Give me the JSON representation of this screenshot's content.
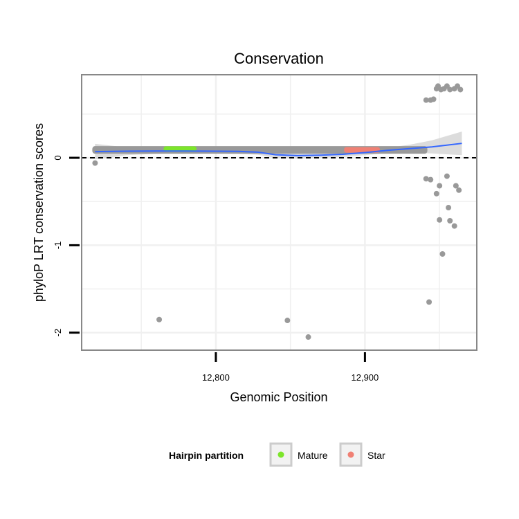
{
  "chart_data": {
    "type": "scatter",
    "title": "Conservation",
    "xlabel": "Genomic Position",
    "ylabel": "phyloP LRT conservation scores",
    "xlim": [
      12710,
      12975
    ],
    "ylim": [
      -2.2,
      0.95
    ],
    "x_ticks": [
      12800,
      12900
    ],
    "x_tick_labels": [
      "12,800",
      "12,900"
    ],
    "x_minor_gridlines": [
      12750,
      12850,
      12950
    ],
    "y_ticks": [
      -2,
      -1,
      0
    ],
    "y_tick_labels": [
      "-2",
      "-1",
      "0"
    ],
    "y_minor_gridlines": [
      -1.5,
      -0.5,
      0.5
    ],
    "grid": true,
    "reference_line": {
      "y": 0,
      "style": "dashed",
      "color": "#000000"
    },
    "legend": {
      "title": "Hairpin partition",
      "placement": "bottom",
      "entries": [
        {
          "label": "Mature",
          "color": "#7de52b"
        },
        {
          "label": "Star",
          "color": "#f08074"
        }
      ]
    },
    "colors": {
      "points": "#999999",
      "smooth_line": "#3366ff",
      "confidence_band": "#d6d6d6",
      "panel_border": "#888888",
      "grid": "#f0f0f0"
    },
    "band": {
      "start": 12719,
      "end": 12940,
      "y": 0.09
    },
    "highlight_segments": [
      {
        "partition": "Mature",
        "start": 12765,
        "end": 12787,
        "y": 0.1,
        "color": "#7de52b"
      },
      {
        "partition": "Star",
        "start": 12886,
        "end": 12910,
        "y": 0.09,
        "color": "#f08074"
      }
    ],
    "points": [
      {
        "x": 12719,
        "y": -0.06
      },
      {
        "x": 12762,
        "y": -1.85
      },
      {
        "x": 12848,
        "y": -1.86
      },
      {
        "x": 12862,
        "y": -2.05
      },
      {
        "x": 12941,
        "y": 0.66
      },
      {
        "x": 12944,
        "y": 0.66
      },
      {
        "x": 12946,
        "y": 0.67
      },
      {
        "x": 12948,
        "y": 0.79
      },
      {
        "x": 12949,
        "y": 0.82
      },
      {
        "x": 12951,
        "y": 0.78
      },
      {
        "x": 12953,
        "y": 0.79
      },
      {
        "x": 12955,
        "y": 0.82
      },
      {
        "x": 12957,
        "y": 0.78
      },
      {
        "x": 12960,
        "y": 0.79
      },
      {
        "x": 12962,
        "y": 0.82
      },
      {
        "x": 12964,
        "y": 0.78
      },
      {
        "x": 12941,
        "y": -0.24
      },
      {
        "x": 12944,
        "y": -0.25
      },
      {
        "x": 12948,
        "y": -0.41
      },
      {
        "x": 12950,
        "y": -0.32
      },
      {
        "x": 12955,
        "y": -0.21
      },
      {
        "x": 12961,
        "y": -0.32
      },
      {
        "x": 12963,
        "y": -0.37
      },
      {
        "x": 12956,
        "y": -0.57
      },
      {
        "x": 12950,
        "y": -0.71
      },
      {
        "x": 12957,
        "y": -0.72
      },
      {
        "x": 12960,
        "y": -0.78
      },
      {
        "x": 12952,
        "y": -1.1
      },
      {
        "x": 12943,
        "y": -1.65
      }
    ],
    "smooth": {
      "x": [
        12719,
        12740,
        12760,
        12780,
        12800,
        12815,
        12828,
        12840,
        12855,
        12870,
        12885,
        12900,
        12915,
        12930,
        12945,
        12965
      ],
      "y": [
        0.07,
        0.075,
        0.077,
        0.077,
        0.075,
        0.073,
        0.065,
        0.035,
        0.025,
        0.03,
        0.04,
        0.06,
        0.085,
        0.105,
        0.125,
        0.165
      ],
      "upper": [
        0.16,
        0.12,
        0.11,
        0.1,
        0.1,
        0.1,
        0.095,
        0.07,
        0.06,
        0.06,
        0.07,
        0.09,
        0.115,
        0.15,
        0.2,
        0.3
      ],
      "lower": [
        -0.02,
        0.03,
        0.045,
        0.055,
        0.05,
        0.045,
        0.035,
        0.0,
        -0.01,
        0.0,
        0.01,
        0.03,
        0.055,
        0.06,
        0.05,
        0.03
      ]
    }
  }
}
